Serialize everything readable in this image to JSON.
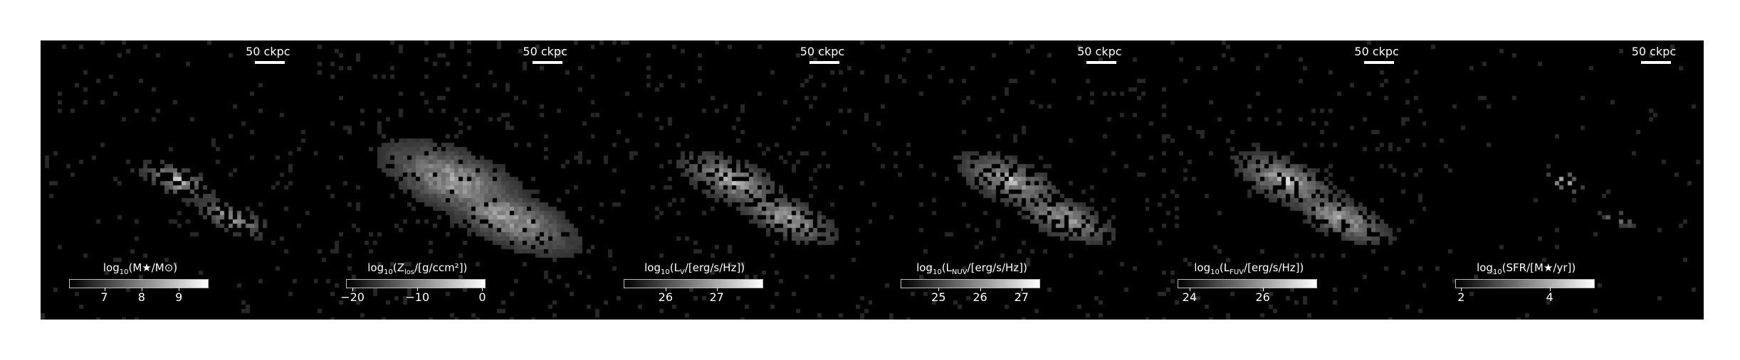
{
  "panels": [
    {
      "scale_label": "50 ckpc",
      "colorbar": {
        "prefix": "log",
        "prefix_sub": "10",
        "inner": "(M★/M⊙)"
      },
      "ticks": [
        {
          "label": "7",
          "pos": 0.25
        },
        {
          "label": "8",
          "pos": 0.52
        },
        {
          "label": "9",
          "pos": 0.79
        }
      ],
      "spread": 0.7,
      "core": 1.0,
      "fill": 0.55
    },
    {
      "scale_label": "50 ckpc",
      "colorbar": {
        "prefix": "log",
        "prefix_sub": "10",
        "inner": "(Z",
        "inner_sub": "los",
        "inner2": "/[g/ccm²])"
      },
      "ticks": [
        {
          "label": "−20",
          "pos": 0.04
        },
        {
          "label": "−10",
          "pos": 0.51
        },
        {
          "label": "0",
          "pos": 0.98
        }
      ],
      "spread": 1.4,
      "core": 0.85,
      "fill": 0.95
    },
    {
      "scale_label": "50 ckpc",
      "colorbar": {
        "prefix": "log",
        "prefix_sub": "10",
        "inner": "(L",
        "inner_sub": "V",
        "inner2": "/[erg/s/Hz])"
      },
      "ticks": [
        {
          "label": "26",
          "pos": 0.3
        },
        {
          "label": "27",
          "pos": 0.67
        }
      ],
      "spread": 1.0,
      "core": 0.9,
      "fill": 0.75
    },
    {
      "scale_label": "50 ckpc",
      "colorbar": {
        "prefix": "log",
        "prefix_sub": "10",
        "inner": "(L",
        "inner_sub": "NUV",
        "inner2": "/[erg/s/Hz])"
      },
      "ticks": [
        {
          "label": "25",
          "pos": 0.27
        },
        {
          "label": "26",
          "pos": 0.57
        },
        {
          "label": "27",
          "pos": 0.87
        }
      ],
      "spread": 1.0,
      "core": 0.9,
      "fill": 0.75
    },
    {
      "scale_label": "50 ckpc",
      "colorbar": {
        "prefix": "log",
        "prefix_sub": "10",
        "inner": "(L",
        "inner_sub": "FUV",
        "inner2": "/[erg/s/Hz])"
      },
      "ticks": [
        {
          "label": "24",
          "pos": 0.08
        },
        {
          "label": "26",
          "pos": 0.61
        }
      ],
      "spread": 1.0,
      "core": 0.9,
      "fill": 0.75
    },
    {
      "scale_label": "50 ckpc",
      "colorbar": {
        "prefix": "log",
        "prefix_sub": "10",
        "inner": "(SFR/[M★/yr])"
      },
      "ticks": [
        {
          "label": "2",
          "pos": 0.04
        },
        {
          "label": "4",
          "pos": 0.68
        }
      ],
      "spread": 0.35,
      "core": 1.0,
      "fill": 0.25
    }
  ]
}
